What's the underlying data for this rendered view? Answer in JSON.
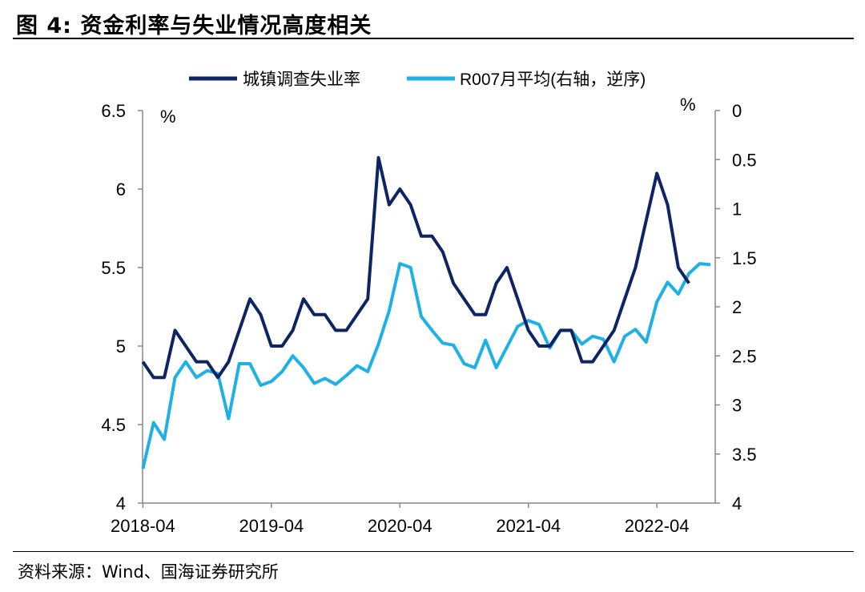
{
  "header": {
    "title": "图 4:  资金利率与失业情况高度相关"
  },
  "footer": {
    "source": "资料来源：Wind、国海证券研究所"
  },
  "colors": {
    "unemployment": "#0f2462",
    "r007": "#1fb1e6"
  },
  "chart_data": {
    "type": "line",
    "left_unit": "%",
    "right_unit": "%",
    "left_ylim": [
      4,
      6.5
    ],
    "left_ticks": [
      4,
      4.5,
      5,
      5.5,
      6,
      6.5
    ],
    "left_tick_labels": [
      "4",
      "4.5",
      "5",
      "5.5",
      "6",
      "6.5"
    ],
    "right_ylim": [
      0,
      4
    ],
    "right_inverted": true,
    "right_ticks": [
      0,
      0.5,
      1,
      1.5,
      2,
      2.5,
      3,
      3.5,
      4
    ],
    "right_tick_labels": [
      "0",
      "0.5",
      "1",
      "1.5",
      "2",
      "2.5",
      "3",
      "3.5",
      "4"
    ],
    "x_tick_labels": [
      "2018-04",
      "2019-04",
      "2020-04",
      "2021-04",
      "2022-04"
    ],
    "legend_position": "top",
    "series": [
      {
        "name": "城镇调查失业率",
        "axis": "left",
        "values": [
          4.9,
          4.8,
          4.8,
          5.1,
          5.0,
          4.9,
          4.9,
          4.8,
          4.9,
          5.1,
          5.3,
          5.2,
          5.0,
          5.0,
          5.1,
          5.3,
          5.2,
          5.2,
          5.1,
          5.1,
          5.2,
          5.3,
          6.2,
          5.9,
          6.0,
          5.9,
          5.7,
          5.7,
          5.6,
          5.4,
          5.3,
          5.2,
          5.2,
          5.4,
          5.5,
          5.3,
          5.1,
          5.0,
          5.0,
          5.1,
          5.1,
          4.9,
          4.9,
          5.0,
          5.1,
          5.3,
          5.5,
          5.8,
          6.1,
          5.9,
          5.5,
          5.4
        ]
      },
      {
        "name": "R007月平均(右轴，逆序)",
        "axis": "right",
        "values": [
          3.65,
          3.18,
          3.35,
          2.72,
          2.56,
          2.72,
          2.65,
          2.68,
          3.14,
          2.58,
          2.58,
          2.8,
          2.76,
          2.66,
          2.5,
          2.62,
          2.78,
          2.73,
          2.79,
          2.7,
          2.6,
          2.66,
          2.38,
          2.04,
          1.56,
          1.6,
          2.1,
          2.24,
          2.37,
          2.39,
          2.58,
          2.62,
          2.34,
          2.62,
          2.41,
          2.2,
          2.14,
          2.18,
          2.42,
          2.24,
          2.24,
          2.38,
          2.3,
          2.33,
          2.56,
          2.3,
          2.23,
          2.36,
          1.95,
          1.75,
          1.87,
          1.66,
          1.56,
          1.57
        ]
      }
    ]
  }
}
